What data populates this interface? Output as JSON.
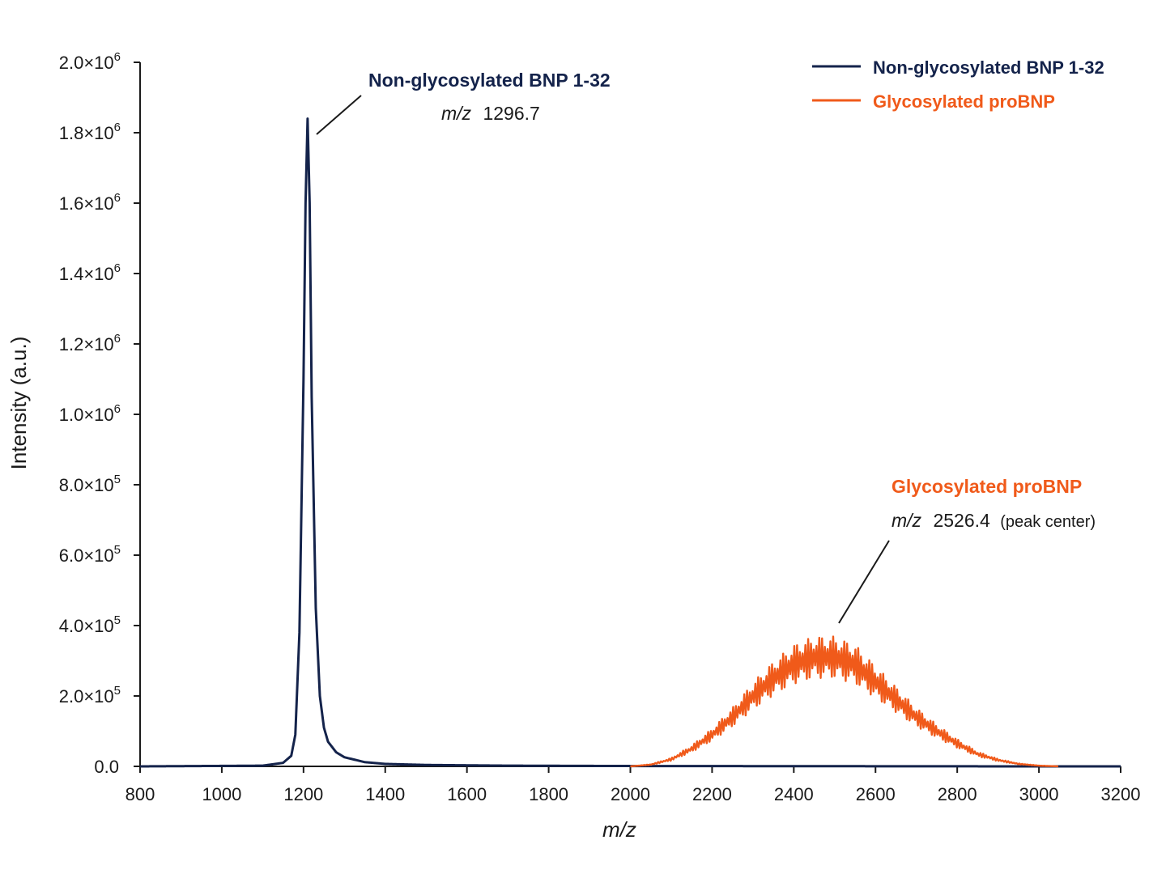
{
  "chart_data": {
    "type": "line",
    "xlabel": "m/z",
    "ylabel": "Intensity (a.u.)",
    "xlim": [
      800,
      3200
    ],
    "ylim": [
      0,
      2000000
    ],
    "x_ticks": [
      "800",
      "1000",
      "1200",
      "1400",
      "1600",
      "1800",
      "2000",
      "2200",
      "2400",
      "2600",
      "2800",
      "3000",
      "3200"
    ],
    "y_ticks": [
      {
        "mant": "0.0",
        "exp": ""
      },
      {
        "mant": "2.0×10",
        "exp": "5"
      },
      {
        "mant": "4.0×10",
        "exp": "5"
      },
      {
        "mant": "6.0×10",
        "exp": "5"
      },
      {
        "mant": "8.0×10",
        "exp": "5"
      },
      {
        "mant": "1.0×10",
        "exp": "6"
      },
      {
        "mant": "1.2×10",
        "exp": "6"
      },
      {
        "mant": "1.4×10",
        "exp": "6"
      },
      {
        "mant": "1.6×10",
        "exp": "6"
      },
      {
        "mant": "1.8×10",
        "exp": "6"
      },
      {
        "mant": "2.0×10",
        "exp": "6"
      }
    ],
    "legend_position": "top-right",
    "grid": false,
    "series": [
      {
        "name": "Non-glycosylated BNP 1-32",
        "color": "#14234b",
        "shape": "sharp-peak",
        "x": [
          800,
          1100,
          1150,
          1170,
          1180,
          1190,
          1200,
          1205,
          1210,
          1215,
          1220,
          1230,
          1240,
          1250,
          1260,
          1280,
          1300,
          1350,
          1400,
          1500,
          1700,
          2000,
          2500,
          3000,
          3200
        ],
        "y": [
          0,
          2000,
          10000,
          30000,
          90000,
          380000,
          1100000,
          1600000,
          1840000,
          1600000,
          1050000,
          450000,
          200000,
          110000,
          70000,
          40000,
          26000,
          12000,
          7000,
          4000,
          2000,
          1000,
          500,
          0,
          0
        ]
      },
      {
        "name": "Glycosylated proBNP",
        "color": "#f05a1a",
        "shape": "broad-oscillating-envelope",
        "x": [
          2000,
          2050,
          2100,
          2150,
          2200,
          2250,
          2300,
          2350,
          2400,
          2450,
          2500,
          2550,
          2600,
          2650,
          2700,
          2750,
          2800,
          2850,
          2900,
          2950,
          3000,
          3050
        ],
        "y": [
          0,
          5000,
          20000,
          50000,
          90000,
          140000,
          200000,
          250000,
          290000,
          310000,
          310000,
          290000,
          240000,
          190000,
          140000,
          100000,
          65000,
          35000,
          18000,
          7000,
          2000,
          0
        ],
        "peak_max_y": 370000
      }
    ],
    "annotations": [
      {
        "title": "Non-glycosylated BNP 1-32",
        "sub_italic": "m/z",
        "sub_value": "1296.7",
        "sub_note": "",
        "color": "#14234b"
      },
      {
        "title": "Glycosylated proBNP",
        "sub_italic": "m/z",
        "sub_value": "2526.4",
        "sub_note": "(peak center)",
        "color": "#f05a1a"
      }
    ]
  }
}
